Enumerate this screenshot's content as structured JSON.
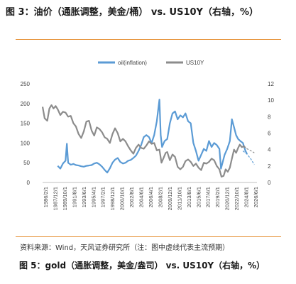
{
  "figure_title": "图 3：油价（通胀调整，美金/桶） vs. US10Y（右轴，%）",
  "source_note": "资料来源：Wind，天风证券研究所（注：图中虚线代表主流预期）",
  "next_title": "图 5：gold（通胀调整，美金/盎司） vs. US10Y（右轴，%）",
  "colors": {
    "oil": "#5b9bd5",
    "us10y": "#8c8c8c",
    "rule": "#e48a2a"
  },
  "chart_data": {
    "type": "line",
    "title": "",
    "xlabel": "",
    "ylabel": "",
    "legend_position": "top-center",
    "x_ticks": [
      "1986/2/1",
      "1987/12/1",
      "1989/10/1",
      "1991/8/1",
      "1993/6/1",
      "1995/4/1",
      "1997/2/1",
      "1998/12/1",
      "2000/10/1",
      "2002/8/1",
      "2004/6/1",
      "2006/4/1",
      "2008/2/1",
      "2009/12/1",
      "2011/10/1",
      "2013/8/1",
      "2015/6/1",
      "2017/4/1",
      "2019/2/1",
      "2020/12/1",
      "2022/10/1",
      "2024/8/1",
      "2026/6/1"
    ],
    "x_range": [
      1986.1,
      2027.2
    ],
    "y_left": {
      "ticks": [
        "0",
        "50",
        "100",
        "150",
        "200",
        "250"
      ],
      "range": [
        0,
        250
      ]
    },
    "y_right": {
      "ticks": [
        "0",
        "2",
        "4",
        "6",
        "8",
        "10",
        "12"
      ],
      "range": [
        0,
        12
      ]
    },
    "series": [
      {
        "name": "oil(inflation)",
        "axis": "left",
        "color": "#5b9bd5",
        "x": [
          1989.0,
          1989.5,
          1990.0,
          1990.5,
          1990.75,
          1991.0,
          1991.5,
          1992.0,
          1992.5,
          1993.0,
          1993.5,
          1994.0,
          1994.5,
          1995.0,
          1995.5,
          1996.0,
          1996.5,
          1997.0,
          1997.5,
          1998.0,
          1998.5,
          1999.0,
          1999.5,
          2000.0,
          2000.5,
          2001.0,
          2001.5,
          2002.0,
          2002.5,
          2003.0,
          2003.5,
          2004.0,
          2004.5,
          2005.0,
          2005.5,
          2006.0,
          2006.5,
          2007.0,
          2007.5,
          2008.0,
          2008.5,
          2008.75,
          2009.0,
          2009.5,
          2010.0,
          2010.5,
          2011.0,
          2011.5,
          2012.0,
          2012.5,
          2013.0,
          2013.5,
          2014.0,
          2014.5,
          2015.0,
          2015.5,
          2016.0,
          2016.5,
          2017.0,
          2017.5,
          2018.0,
          2018.5,
          2019.0,
          2019.5,
          2020.0,
          2020.3,
          2020.6,
          2021.0,
          2021.5,
          2022.0,
          2022.4,
          2022.8,
          2023.2,
          2023.6,
          2024.0,
          2024.5,
          2025.0,
          2025.3
        ],
        "y": [
          42,
          35,
          48,
          55,
          98,
          50,
          45,
          47,
          44,
          43,
          41,
          40,
          42,
          43,
          44,
          48,
          50,
          46,
          40,
          32,
          25,
          36,
          50,
          58,
          62,
          52,
          48,
          50,
          55,
          57,
          62,
          68,
          80,
          95,
          115,
          120,
          115,
          100,
          120,
          155,
          210,
          120,
          90,
          105,
          110,
          150,
          175,
          180,
          160,
          170,
          165,
          175,
          155,
          150,
          100,
          80,
          55,
          70,
          85,
          80,
          105,
          90,
          100,
          95,
          85,
          35,
          50,
          70,
          85,
          105,
          160,
          140,
          120,
          110,
          105,
          100,
          80,
          72
        ]
      },
      {
        "name": "US10Y",
        "axis": "right",
        "color": "#8c8c8c",
        "x": [
          1986.1,
          1986.5,
          1987.0,
          1987.4,
          1987.8,
          1988.2,
          1988.6,
          1989.0,
          1989.5,
          1990.0,
          1990.5,
          1991.0,
          1991.5,
          1992.0,
          1992.5,
          1993.0,
          1993.5,
          1994.0,
          1994.5,
          1995.0,
          1995.5,
          1996.0,
          1996.5,
          1997.0,
          1997.5,
          1998.0,
          1998.5,
          1999.0,
          1999.5,
          2000.0,
          2000.5,
          2001.0,
          2001.5,
          2002.0,
          2002.5,
          2003.0,
          2003.5,
          2004.0,
          2004.5,
          2005.0,
          2005.5,
          2006.0,
          2006.5,
          2007.0,
          2007.5,
          2008.0,
          2008.5,
          2008.9,
          2009.3,
          2009.7,
          2010.0,
          2010.5,
          2011.0,
          2011.5,
          2012.0,
          2012.5,
          2013.0,
          2013.5,
          2014.0,
          2014.5,
          2015.0,
          2015.5,
          2016.0,
          2016.5,
          2017.0,
          2017.5,
          2018.0,
          2018.5,
          2019.0,
          2019.5,
          2020.0,
          2020.4,
          2020.8,
          2021.2,
          2021.6,
          2022.0,
          2022.4,
          2022.8,
          2023.2,
          2023.6,
          2023.9,
          2024.3,
          2024.7,
          2025.0
        ],
        "y": [
          9.2,
          7.8,
          7.5,
          9.0,
          9.4,
          9.0,
          9.3,
          8.9,
          8.2,
          8.6,
          8.5,
          8.0,
          8.1,
          7.2,
          6.8,
          5.9,
          5.4,
          6.2,
          7.4,
          7.5,
          6.3,
          5.7,
          6.7,
          6.5,
          6.1,
          5.5,
          5.3,
          4.8,
          5.9,
          6.6,
          6.0,
          5.0,
          5.3,
          5.0,
          4.4,
          3.9,
          3.5,
          4.2,
          4.6,
          4.2,
          4.1,
          4.5,
          5.0,
          4.7,
          4.8,
          3.9,
          4.0,
          2.4,
          3.0,
          3.6,
          3.7,
          2.7,
          3.4,
          3.1,
          1.9,
          1.6,
          1.9,
          2.6,
          2.8,
          2.5,
          2.0,
          2.3,
          1.8,
          1.5,
          2.4,
          2.3,
          2.5,
          2.9,
          2.7,
          2.0,
          1.6,
          0.7,
          0.8,
          1.6,
          1.3,
          1.8,
          2.9,
          4.0,
          3.6,
          4.2,
          4.6,
          4.3,
          4.4,
          4.2
        ]
      },
      {
        "name": "oil expectation",
        "axis": "left",
        "dashed": true,
        "color": "#5b9bd5",
        "x": [
          2024.5,
          2025.3,
          2026.0,
          2026.7
        ],
        "y": [
          80,
          72,
          60,
          45
        ]
      },
      {
        "name": "US10Y expectation",
        "axis": "right",
        "dashed": true,
        "color": "#8c8c8c",
        "x": [
          2024.7,
          2025.0,
          2025.6,
          2026.2,
          2026.7
        ],
        "y": [
          4.4,
          4.2,
          4.0,
          3.8,
          3.6
        ]
      }
    ]
  }
}
